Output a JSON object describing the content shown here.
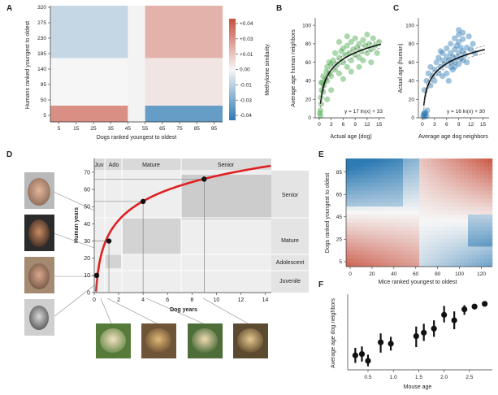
{
  "colors": {
    "red": "#c8503e",
    "blue": "#2e7bb4",
    "green": "#4aa84c",
    "curve": "#e02020",
    "fit": "#111111",
    "grey_bg": "#dcdcdc",
    "grey_box": "#c8c8c8"
  },
  "chart_data": [
    {
      "id": "A",
      "type": "heatmap",
      "xlabel": "Dogs ranked youngest to oldest",
      "ylabel": "Humans ranked youngest to oldest",
      "x_ticks": [
        "5",
        "15",
        "25",
        "35",
        "45",
        "55",
        "65",
        "75",
        "85",
        "95"
      ],
      "y_ticks": [
        "5",
        "50",
        "95",
        "140",
        "185",
        "230",
        "275",
        "320"
      ],
      "colorbar": {
        "label": "Methylome similarity",
        "ticks": [
          "+0.04",
          "+0.03",
          "+0.01",
          "0.00",
          "-0.01",
          "-0.03",
          "-0.04"
        ]
      },
      "blocks": [
        {
          "x": [
            0,
            0.45
          ],
          "y": [
            0,
            0.14
          ],
          "value": 0.03
        },
        {
          "x": [
            0.55,
            1.0
          ],
          "y": [
            0,
            0.14
          ],
          "value": -0.035
        },
        {
          "x": [
            0,
            0.45
          ],
          "y": [
            0.14,
            0.55
          ],
          "value": 0.0
        },
        {
          "x": [
            0.55,
            1.0
          ],
          "y": [
            0.14,
            0.55
          ],
          "value": 0.005
        },
        {
          "x": [
            0,
            0.45
          ],
          "y": [
            0.55,
            1.0
          ],
          "value": -0.012
        },
        {
          "x": [
            0.55,
            1.0
          ],
          "y": [
            0.55,
            1.0
          ],
          "value": 0.02
        }
      ]
    },
    {
      "id": "B",
      "type": "scatter",
      "xlabel": "Actual age (dog)",
      "ylabel": "Average age human neighbors",
      "x_ticks": [
        "0",
        "3",
        "6",
        "9",
        "12",
        "15"
      ],
      "y_ticks": [
        "0",
        "20",
        "40",
        "60",
        "80",
        "100"
      ],
      "xlim": [
        -1,
        16.5
      ],
      "ylim": [
        0,
        108
      ],
      "fit_label": "y = 17 ln(x) + 33",
      "fit": {
        "a": 17,
        "b": 33
      },
      "points": [
        [
          0.2,
          5
        ],
        [
          0.3,
          8
        ],
        [
          0.4,
          22
        ],
        [
          0.5,
          15
        ],
        [
          0.6,
          30
        ],
        [
          0.8,
          38
        ],
        [
          1,
          28
        ],
        [
          1,
          45
        ],
        [
          1.2,
          35
        ],
        [
          1.5,
          42
        ],
        [
          1.8,
          50
        ],
        [
          2,
          40
        ],
        [
          2,
          55
        ],
        [
          2.5,
          48
        ],
        [
          2.5,
          60
        ],
        [
          3,
          45
        ],
        [
          3,
          58
        ],
        [
          3.5,
          62
        ],
        [
          4,
          52
        ],
        [
          4,
          70
        ],
        [
          4.5,
          58
        ],
        [
          5,
          65
        ],
        [
          5,
          48
        ],
        [
          5.5,
          72
        ],
        [
          6,
          60
        ],
        [
          6,
          75
        ],
        [
          6.5,
          68
        ],
        [
          7,
          55
        ],
        [
          7,
          78
        ],
        [
          7.5,
          70
        ],
        [
          8,
          62
        ],
        [
          8,
          82
        ],
        [
          8.5,
          74
        ],
        [
          9,
          68
        ],
        [
          9,
          86
        ],
        [
          9.5,
          76
        ],
        [
          10,
          65
        ],
        [
          10,
          80
        ],
        [
          10.5,
          72
        ],
        [
          11,
          84
        ],
        [
          11,
          62
        ],
        [
          11.5,
          78
        ],
        [
          12,
          70
        ],
        [
          12,
          90
        ],
        [
          12.5,
          80
        ],
        [
          13,
          74
        ],
        [
          13.5,
          86
        ],
        [
          14,
          78
        ],
        [
          14.5,
          70
        ],
        [
          15,
          82
        ],
        [
          3,
          30
        ],
        [
          2,
          20
        ],
        [
          6,
          42
        ],
        [
          8,
          50
        ],
        [
          10,
          55
        ],
        [
          13,
          60
        ],
        [
          0.3,
          2
        ],
        [
          0.5,
          38
        ],
        [
          5,
          82
        ],
        [
          7,
          88
        ]
      ]
    },
    {
      "id": "C",
      "type": "scatter",
      "xlabel": "Average age dog neighbors",
      "ylabel": "Actual age (human)",
      "x_ticks": [
        "0",
        "3",
        "6",
        "9",
        "12",
        "15"
      ],
      "y_ticks": [
        "0",
        "20",
        "40",
        "60",
        "80",
        "100"
      ],
      "xlim": [
        -1,
        16.5
      ],
      "ylim": [
        0,
        108
      ],
      "fit_label": "y = 16 ln(x) + 30",
      "fit": {
        "a": 16,
        "b": 30
      },
      "points": [
        [
          0.2,
          2
        ],
        [
          0.3,
          4
        ],
        [
          0.4,
          1
        ],
        [
          0.5,
          6
        ],
        [
          0.6,
          3
        ],
        [
          0.8,
          5
        ],
        [
          1,
          2
        ],
        [
          1.2,
          8
        ],
        [
          0.5,
          30
        ],
        [
          1,
          40
        ],
        [
          1.5,
          48
        ],
        [
          2,
          35
        ],
        [
          2,
          55
        ],
        [
          2.5,
          45
        ],
        [
          3,
          52
        ],
        [
          3.5,
          60
        ],
        [
          4,
          48
        ],
        [
          4,
          65
        ],
        [
          4.5,
          55
        ],
        [
          5,
          62
        ],
        [
          5,
          70
        ],
        [
          5.5,
          58
        ],
        [
          6,
          66
        ],
        [
          6,
          75
        ],
        [
          6.5,
          62
        ],
        [
          7,
          70
        ],
        [
          7,
          80
        ],
        [
          7.5,
          66
        ],
        [
          8,
          74
        ],
        [
          8,
          60
        ],
        [
          8.5,
          78
        ],
        [
          9,
          70
        ],
        [
          9,
          82
        ],
        [
          9.5,
          64
        ],
        [
          9,
          58
        ],
        [
          10,
          72
        ],
        [
          10,
          85
        ],
        [
          10.5,
          68
        ],
        [
          11,
          76
        ],
        [
          11,
          60
        ],
        [
          12,
          74
        ],
        [
          12.5,
          80
        ],
        [
          13,
          70
        ],
        [
          7,
          55
        ],
        [
          8,
          86
        ],
        [
          6,
          48
        ],
        [
          9,
          90
        ],
        [
          5,
          45
        ],
        [
          10,
          92
        ],
        [
          7.5,
          52
        ],
        [
          6.5,
          40
        ],
        [
          8.5,
          65
        ],
        [
          9.5,
          76
        ],
        [
          11.5,
          88
        ],
        [
          4.5,
          72
        ],
        [
          3,
          40
        ],
        [
          8,
          55
        ],
        [
          10,
          62
        ],
        [
          9,
          95
        ],
        [
          7,
          60
        ]
      ]
    },
    {
      "id": "D",
      "type": "line",
      "xlabel": "Dog years",
      "ylabel": "Human years",
      "x_ticks": [
        "0",
        "2",
        "4",
        "6",
        "8",
        "10",
        "12",
        "14"
      ],
      "y_ticks": [
        "0",
        "10",
        "20",
        "30",
        "40",
        "50",
        "60",
        "70"
      ],
      "xlim": [
        0,
        14.5
      ],
      "ylim": [
        0,
        78
      ],
      "stages_top": [
        "Juv",
        "Ado",
        "Mature",
        "Senior"
      ],
      "stages_right": [
        "Senior",
        "Mature",
        "Adolescent",
        "Juvenile"
      ],
      "points": [
        [
          0.2,
          10
        ],
        [
          1.2,
          30
        ],
        [
          4,
          53
        ],
        [
          9,
          66
        ]
      ]
    },
    {
      "id": "E",
      "type": "heatmap",
      "xlabel": "Mice ranked youngest to oldest",
      "ylabel": "Dogs ranked youngest to oldest",
      "x_ticks": [
        "0",
        "20",
        "40",
        "60",
        "80",
        "100",
        "120"
      ],
      "y_ticks": [
        "5",
        "25",
        "45",
        "65",
        "85"
      ]
    },
    {
      "id": "F",
      "type": "scatter",
      "xlabel": "Mouse age",
      "ylabel": "Average age dog neighbors",
      "x_ticks": [
        "0.5",
        "1.0",
        "1.5",
        "2.0",
        "2.5"
      ],
      "xlim": [
        0.1,
        2.95
      ],
      "ylim": [
        0,
        11
      ],
      "points": [
        {
          "x": 0.25,
          "y": 2.1,
          "lo": 1.0,
          "hi": 3.2
        },
        {
          "x": 0.38,
          "y": 2.3,
          "lo": 1.2,
          "hi": 3.4
        },
        {
          "x": 0.5,
          "y": 1.3,
          "lo": 0.5,
          "hi": 2.2
        },
        {
          "x": 0.75,
          "y": 4.0,
          "lo": 2.5,
          "hi": 5.3
        },
        {
          "x": 0.95,
          "y": 3.8,
          "lo": 2.8,
          "hi": 4.8
        },
        {
          "x": 1.45,
          "y": 4.9,
          "lo": 3.3,
          "hi": 6.3
        },
        {
          "x": 1.6,
          "y": 5.4,
          "lo": 4.2,
          "hi": 6.7
        },
        {
          "x": 1.8,
          "y": 6.0,
          "lo": 4.8,
          "hi": 7.2
        },
        {
          "x": 2.0,
          "y": 8.0,
          "lo": 6.9,
          "hi": 9.3
        },
        {
          "x": 2.2,
          "y": 7.2,
          "lo": 5.9,
          "hi": 8.5
        },
        {
          "x": 2.4,
          "y": 8.8,
          "lo": 8.0,
          "hi": 9.4
        },
        {
          "x": 2.6,
          "y": 9.2,
          "lo": 8.8,
          "hi": 9.6
        },
        {
          "x": 2.8,
          "y": 9.6,
          "lo": 9.2,
          "hi": 9.9
        }
      ]
    }
  ]
}
